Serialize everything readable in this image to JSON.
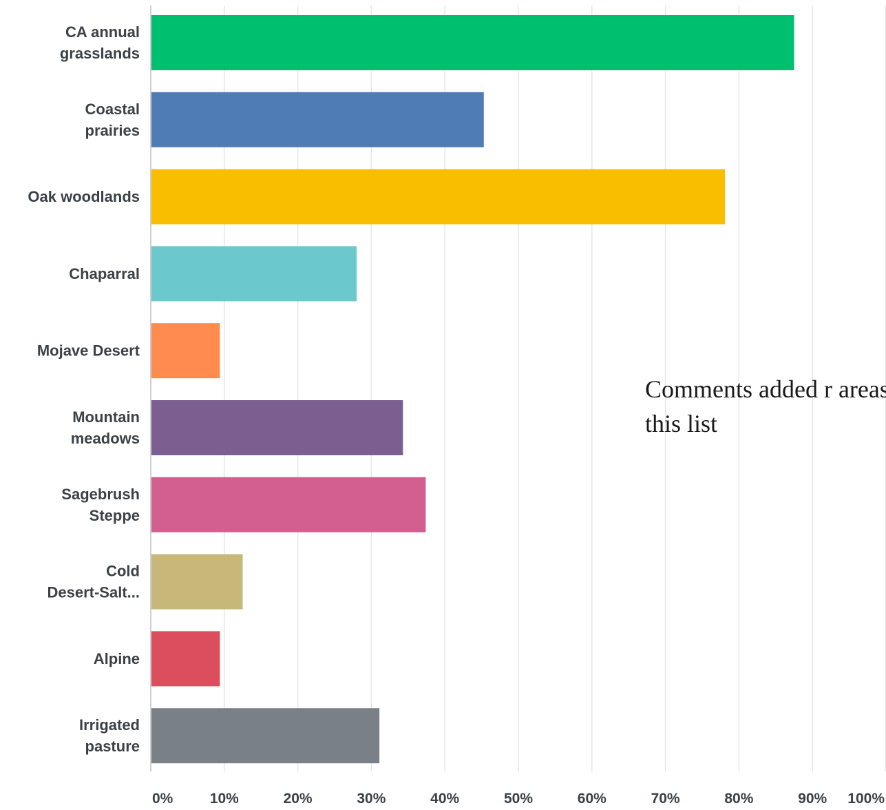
{
  "chart_data": {
    "type": "bar",
    "orientation": "horizontal",
    "categories": [
      [
        "CA annual",
        "grasslands"
      ],
      [
        "Coastal",
        "prairies"
      ],
      [
        "Oak woodlands"
      ],
      [
        "Chaparral"
      ],
      [
        "Mojave Desert"
      ],
      [
        "Mountain",
        "meadows"
      ],
      [
        "Sagebrush",
        "Steppe"
      ],
      [
        "Cold",
        "Desert-Salt..."
      ],
      [
        "Alpine"
      ],
      [
        "Irrigated",
        "pasture"
      ]
    ],
    "values": [
      87.5,
      45.3,
      78.1,
      28.0,
      9.4,
      34.3,
      37.4,
      12.5,
      9.4,
      31.1
    ],
    "colors": [
      "#00bf6f",
      "#507cb6",
      "#f9be00",
      "#6bc8cd",
      "#ff8b4f",
      "#7d5e90",
      "#d25f90",
      "#c7b879",
      "#dc4e5d",
      "#798187"
    ],
    "xlim": [
      0,
      100
    ],
    "xticks": [
      0,
      10,
      20,
      30,
      40,
      50,
      60,
      70,
      80,
      90,
      100
    ],
    "xtick_labels": [
      "0%",
      "10%",
      "20%",
      "30%",
      "40%",
      "50%",
      "60%",
      "70%",
      "80%",
      "90%",
      "100%"
    ],
    "grid": true,
    "grid_color": "#e6e6e6",
    "axis_color": "#cfcfcf",
    "title": "",
    "xlabel": "",
    "ylabel": ""
  },
  "annotation": {
    "text": "Comments added r areas to this list"
  }
}
